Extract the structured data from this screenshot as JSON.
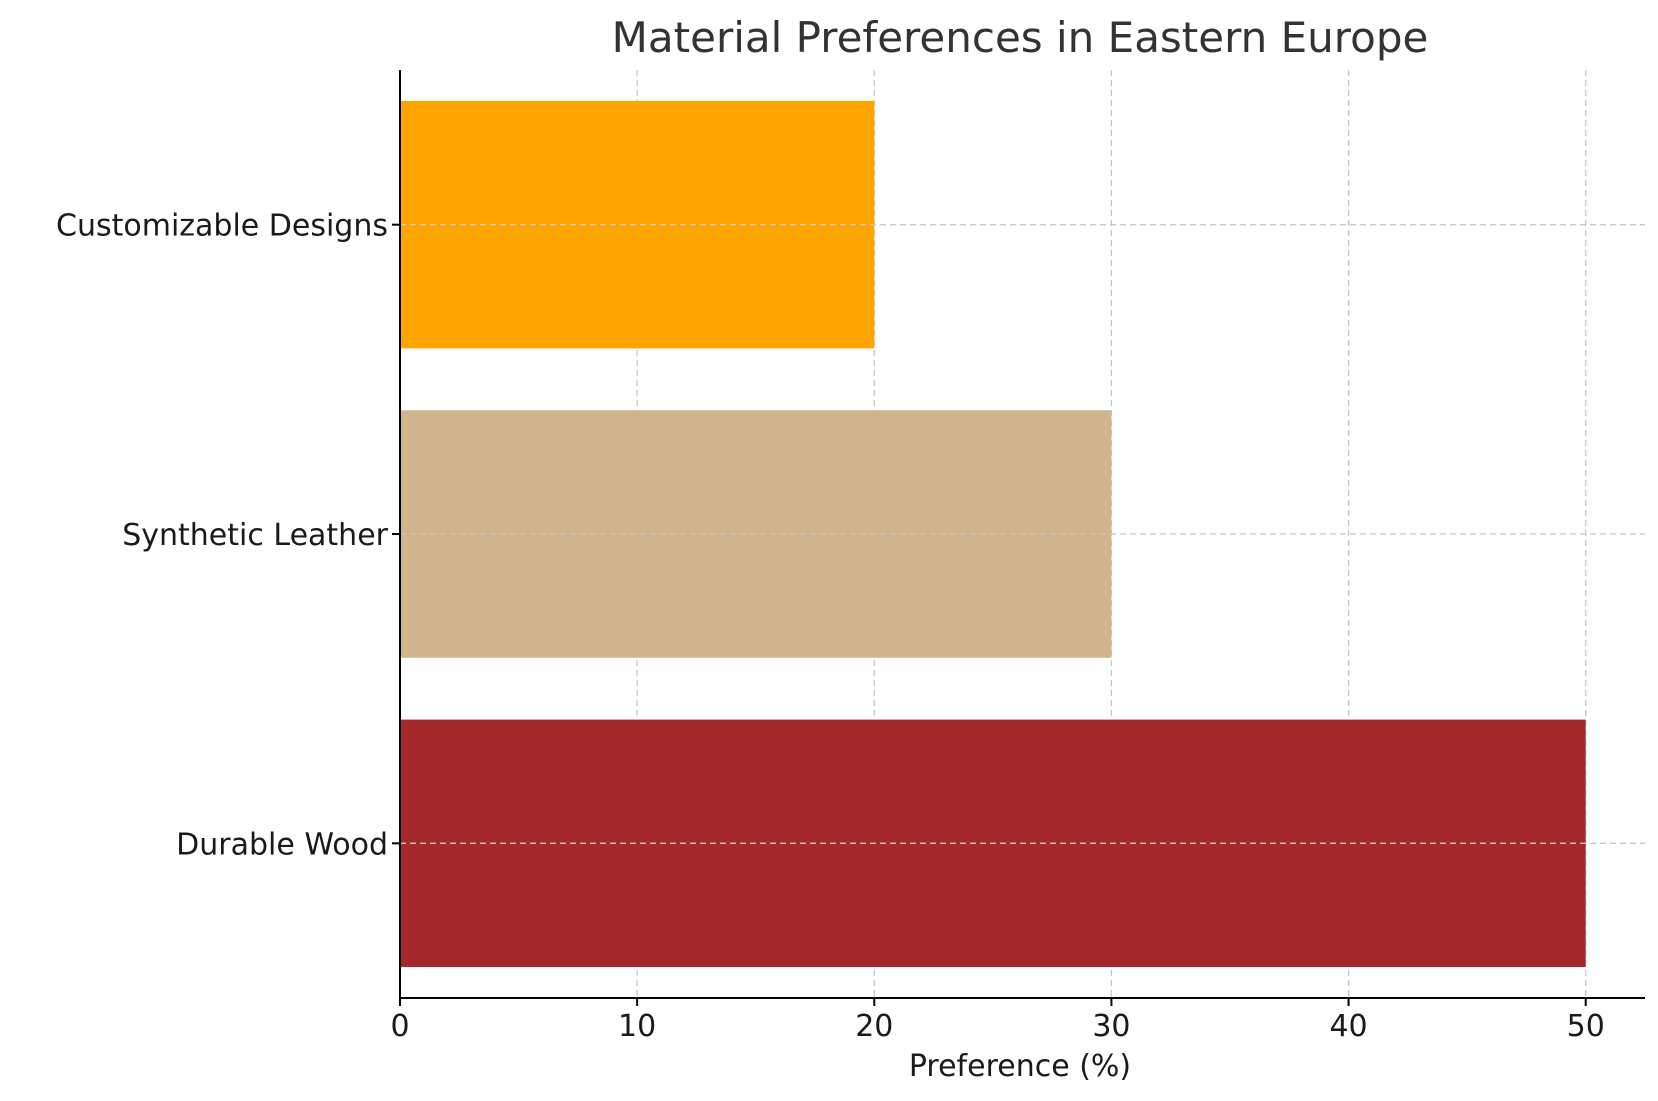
{
  "chart_data": {
    "type": "bar",
    "orientation": "horizontal",
    "title": "Material Preferences in Eastern Europe",
    "xlabel": "Preference (%)",
    "ylabel": "",
    "categories": [
      "Durable Wood",
      "Synthetic Leather",
      "Customizable Designs"
    ],
    "values": [
      50,
      30,
      20
    ],
    "colors": [
      "#a3292b",
      "#d2b48c",
      "#ffa500"
    ],
    "xlim": [
      0,
      52.5
    ],
    "xticks": [
      0,
      10,
      20,
      30,
      40,
      50
    ],
    "grid": true,
    "grid_style": "dashed"
  }
}
